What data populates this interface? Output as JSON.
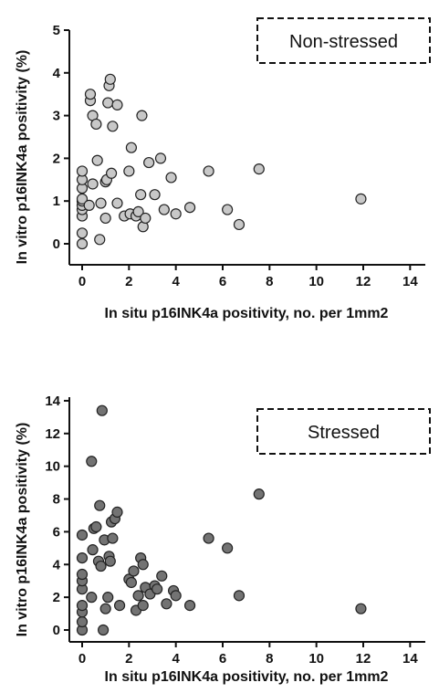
{
  "chart_data": [
    {
      "type": "scatter",
      "legend_label": "Non-stressed",
      "legend_position": "top-right",
      "xlabel": "In situ p16INK4a positivity, no. per 1mm2",
      "ylabel": "In vitro p16INK4a positivity (%)",
      "xlim": [
        0,
        15
      ],
      "ylim": [
        0,
        5
      ],
      "xticks": [
        "0",
        "2",
        "4",
        "6",
        "8",
        "10",
        "12",
        "14"
      ],
      "yticks": [
        "0",
        "1",
        "2",
        "3",
        "4",
        "5"
      ],
      "marker_color": "#c8c8c8",
      "grid": false,
      "points": [
        {
          "x": 0,
          "y": 0.0
        },
        {
          "x": 0,
          "y": 0.25
        },
        {
          "x": 0,
          "y": 0.65
        },
        {
          "x": 0,
          "y": 0.8
        },
        {
          "x": 0,
          "y": 0.9
        },
        {
          "x": 0,
          "y": 1.0
        },
        {
          "x": 0,
          "y": 1.05
        },
        {
          "x": 0,
          "y": 1.3
        },
        {
          "x": 0,
          "y": 1.5
        },
        {
          "x": 0,
          "y": 1.7
        },
        {
          "x": 0.3,
          "y": 0.9
        },
        {
          "x": 0.35,
          "y": 3.35
        },
        {
          "x": 0.35,
          "y": 3.5
        },
        {
          "x": 0.45,
          "y": 1.4
        },
        {
          "x": 0.45,
          "y": 3.0
        },
        {
          "x": 0.6,
          "y": 2.8
        },
        {
          "x": 0.65,
          "y": 1.95
        },
        {
          "x": 0.75,
          "y": 0.1
        },
        {
          "x": 0.8,
          "y": 0.95
        },
        {
          "x": 1.0,
          "y": 0.6
        },
        {
          "x": 1.0,
          "y": 1.45
        },
        {
          "x": 1.05,
          "y": 1.5
        },
        {
          "x": 1.1,
          "y": 3.3
        },
        {
          "x": 1.15,
          "y": 3.7
        },
        {
          "x": 1.2,
          "y": 3.85
        },
        {
          "x": 1.25,
          "y": 1.65
        },
        {
          "x": 1.3,
          "y": 2.75
        },
        {
          "x": 1.5,
          "y": 3.25
        },
        {
          "x": 1.5,
          "y": 0.95
        },
        {
          "x": 1.8,
          "y": 0.65
        },
        {
          "x": 2.0,
          "y": 1.7
        },
        {
          "x": 2.05,
          "y": 0.7
        },
        {
          "x": 2.1,
          "y": 2.25
        },
        {
          "x": 2.3,
          "y": 0.65
        },
        {
          "x": 2.4,
          "y": 0.75
        },
        {
          "x": 2.5,
          "y": 1.15
        },
        {
          "x": 2.55,
          "y": 3.0
        },
        {
          "x": 2.6,
          "y": 0.4
        },
        {
          "x": 2.7,
          "y": 0.6
        },
        {
          "x": 2.85,
          "y": 1.9
        },
        {
          "x": 3.1,
          "y": 1.15
        },
        {
          "x": 3.35,
          "y": 2.0
        },
        {
          "x": 3.5,
          "y": 0.8
        },
        {
          "x": 3.8,
          "y": 1.55
        },
        {
          "x": 4.0,
          "y": 0.7
        },
        {
          "x": 4.6,
          "y": 0.85
        },
        {
          "x": 5.4,
          "y": 1.7
        },
        {
          "x": 6.2,
          "y": 0.8
        },
        {
          "x": 6.7,
          "y": 0.45
        },
        {
          "x": 7.55,
          "y": 1.75
        },
        {
          "x": 11.9,
          "y": 1.05
        }
      ]
    },
    {
      "type": "scatter",
      "legend_label": "Stressed",
      "legend_position": "top-right",
      "xlabel": "In situ p16INK4a positivity, no. per 1mm2",
      "ylabel": "In vitro p16INK4a positivity (%)",
      "xlim": [
        0,
        15
      ],
      "ylim": [
        0,
        15
      ],
      "xticks": [
        "0",
        "2",
        "4",
        "6",
        "8",
        "10",
        "12",
        "14"
      ],
      "yticks": [
        "0",
        "2",
        "4",
        "6",
        "8",
        "10",
        "12",
        "14"
      ],
      "marker_color": "#737373",
      "grid": false,
      "points": [
        {
          "x": 0,
          "y": 0.0
        },
        {
          "x": 0,
          "y": 0.5
        },
        {
          "x": 0,
          "y": 1.1
        },
        {
          "x": 0,
          "y": 1.5
        },
        {
          "x": 0,
          "y": 2.5
        },
        {
          "x": 0,
          "y": 3.0
        },
        {
          "x": 0,
          "y": 3.4
        },
        {
          "x": 0,
          "y": 4.4
        },
        {
          "x": 0,
          "y": 5.8
        },
        {
          "x": 0.4,
          "y": 2.0
        },
        {
          "x": 0.4,
          "y": 10.3
        },
        {
          "x": 0.45,
          "y": 4.9
        },
        {
          "x": 0.5,
          "y": 6.2
        },
        {
          "x": 0.6,
          "y": 6.3
        },
        {
          "x": 0.7,
          "y": 4.2
        },
        {
          "x": 0.75,
          "y": 7.6
        },
        {
          "x": 0.8,
          "y": 3.9
        },
        {
          "x": 0.85,
          "y": 13.4
        },
        {
          "x": 0.9,
          "y": 0.0
        },
        {
          "x": 0.95,
          "y": 5.5
        },
        {
          "x": 1.0,
          "y": 1.3
        },
        {
          "x": 1.1,
          "y": 2.0
        },
        {
          "x": 1.15,
          "y": 4.5
        },
        {
          "x": 1.2,
          "y": 4.2
        },
        {
          "x": 1.25,
          "y": 6.6
        },
        {
          "x": 1.3,
          "y": 5.6
        },
        {
          "x": 1.4,
          "y": 6.8
        },
        {
          "x": 1.5,
          "y": 7.2
        },
        {
          "x": 1.6,
          "y": 1.5
        },
        {
          "x": 2.0,
          "y": 3.1
        },
        {
          "x": 2.1,
          "y": 2.9
        },
        {
          "x": 2.2,
          "y": 3.6
        },
        {
          "x": 2.3,
          "y": 1.2
        },
        {
          "x": 2.4,
          "y": 2.1
        },
        {
          "x": 2.5,
          "y": 4.4
        },
        {
          "x": 2.6,
          "y": 1.5
        },
        {
          "x": 2.6,
          "y": 4.0
        },
        {
          "x": 2.7,
          "y": 2.6
        },
        {
          "x": 2.9,
          "y": 2.2
        },
        {
          "x": 3.1,
          "y": 2.7
        },
        {
          "x": 3.2,
          "y": 2.5
        },
        {
          "x": 3.4,
          "y": 3.3
        },
        {
          "x": 3.6,
          "y": 1.6
        },
        {
          "x": 3.9,
          "y": 2.4
        },
        {
          "x": 4.0,
          "y": 2.1
        },
        {
          "x": 4.6,
          "y": 1.5
        },
        {
          "x": 5.4,
          "y": 5.6
        },
        {
          "x": 6.2,
          "y": 5.0
        },
        {
          "x": 6.7,
          "y": 2.1
        },
        {
          "x": 7.55,
          "y": 8.3
        },
        {
          "x": 11.9,
          "y": 1.3
        }
      ]
    }
  ]
}
